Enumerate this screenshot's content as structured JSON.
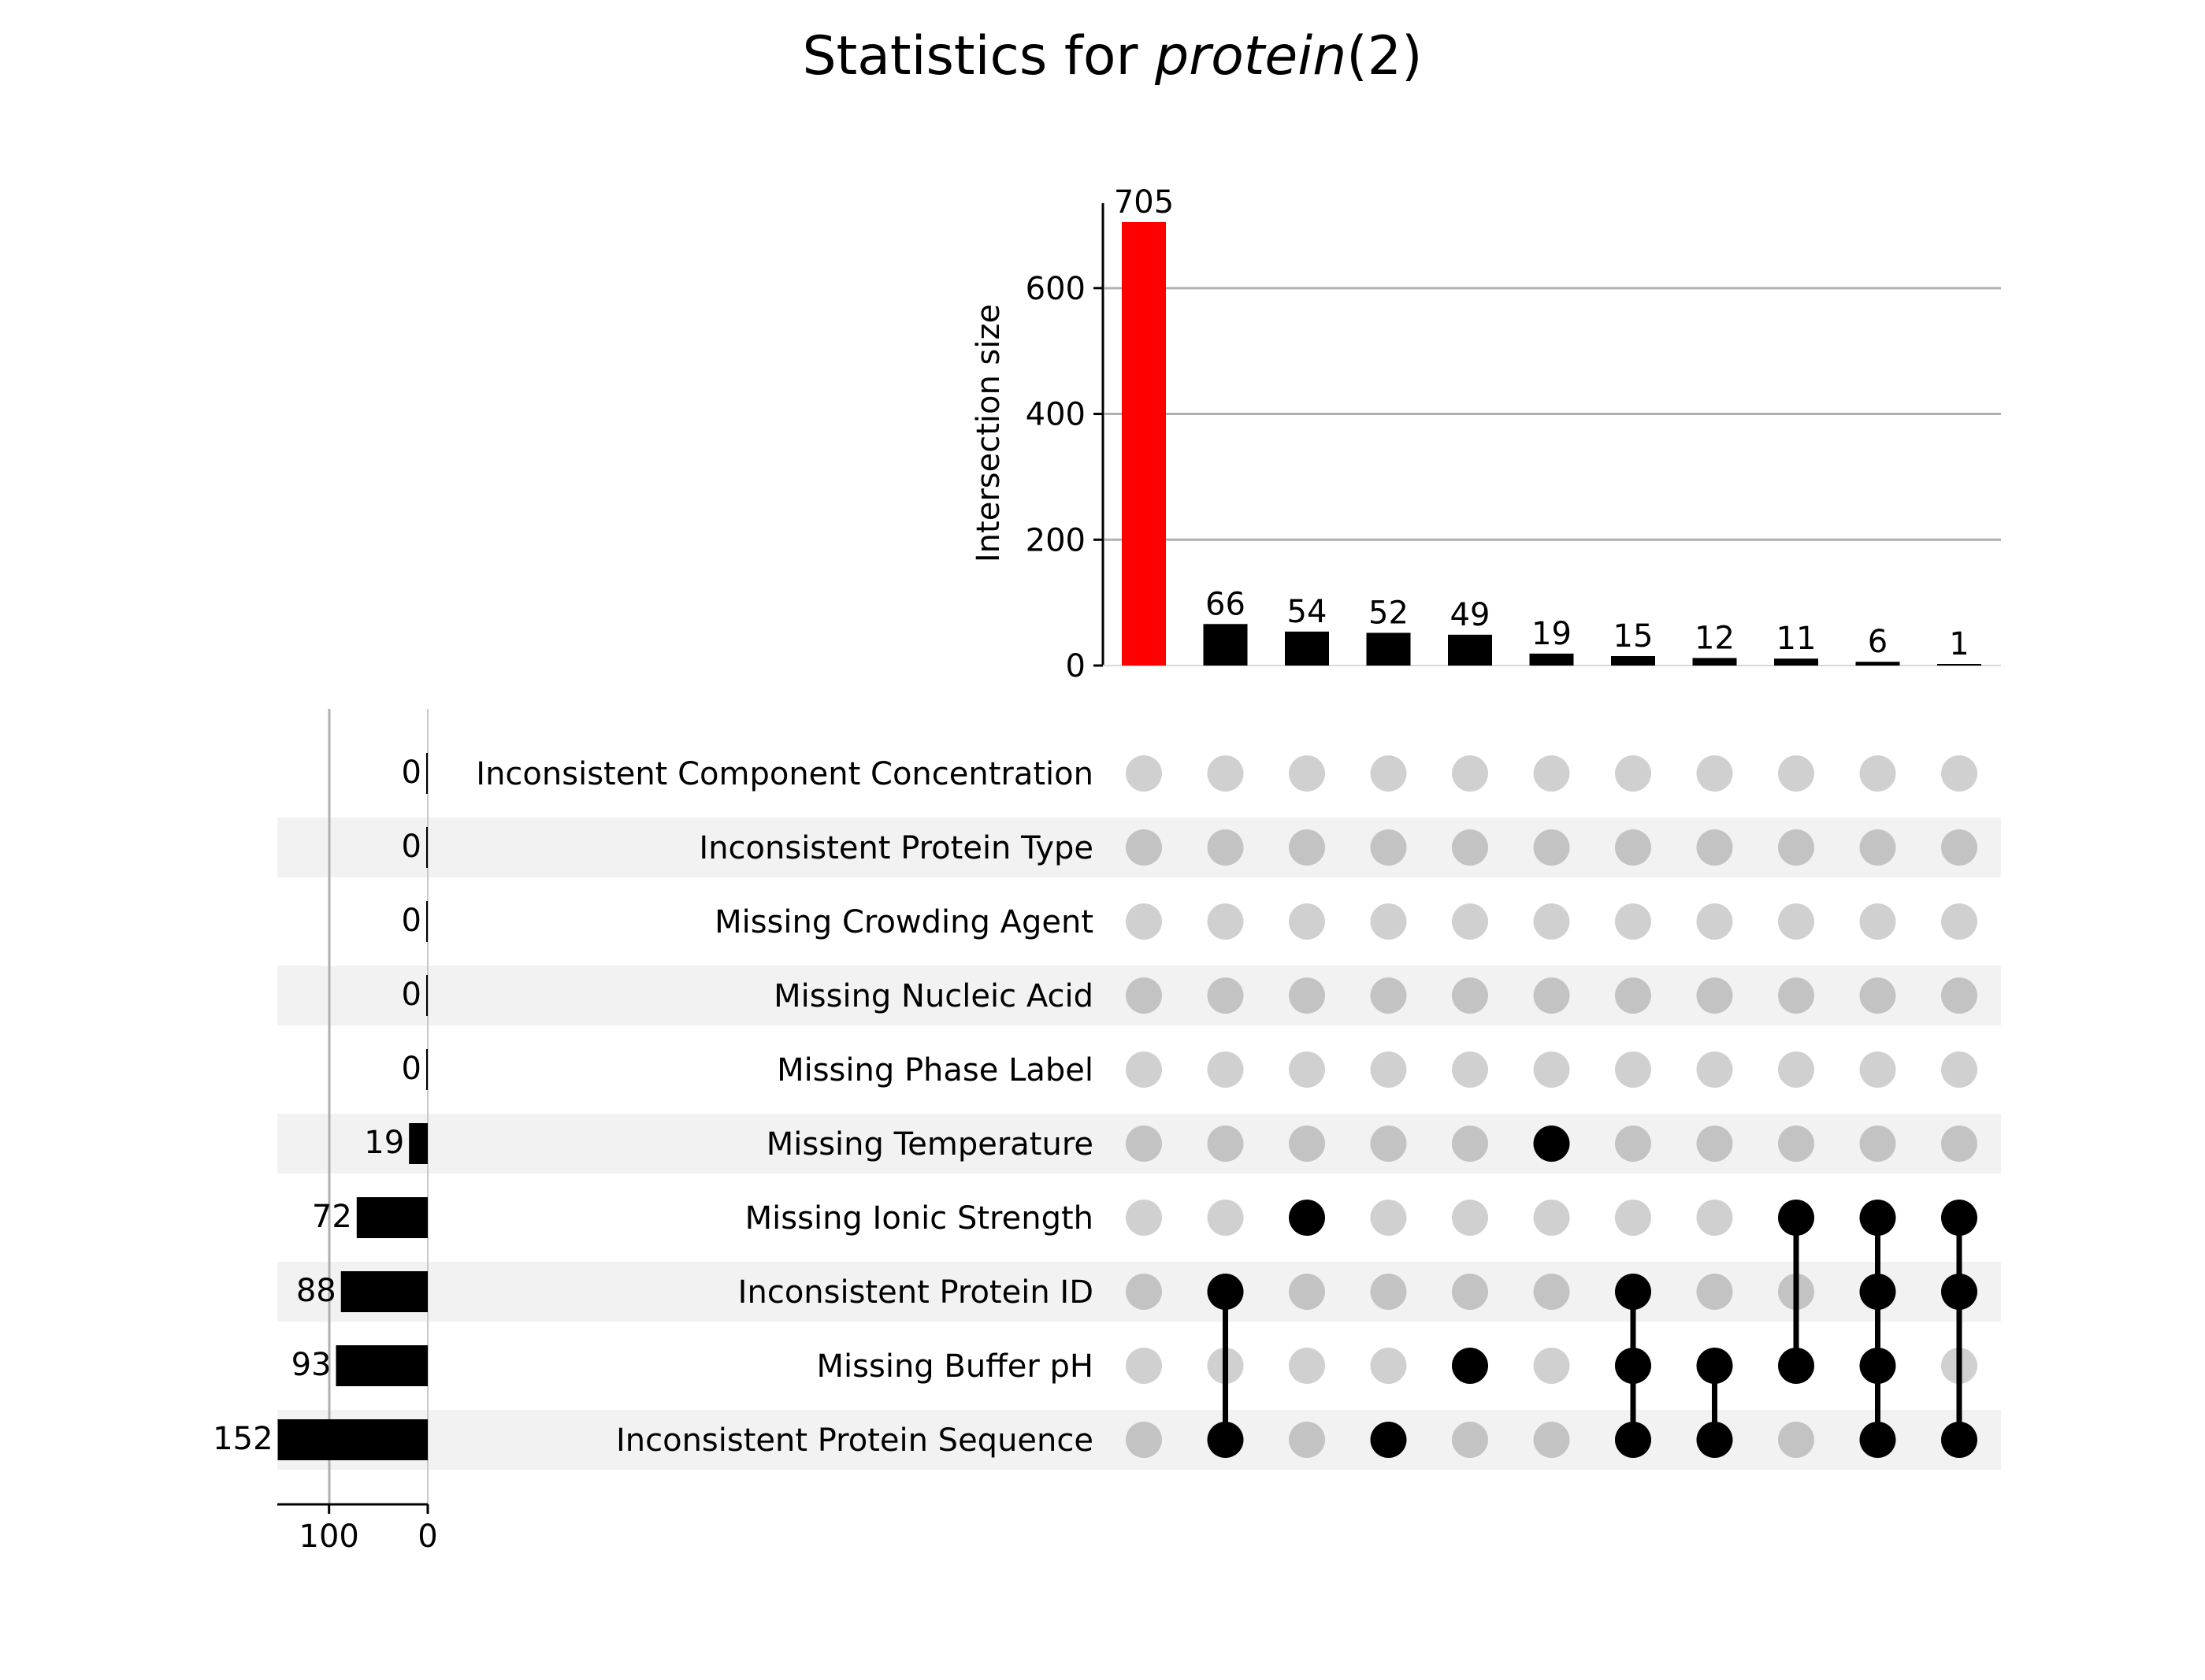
{
  "chart_data": {
    "type": "upset",
    "title": "Statistics for ",
    "title_italic": "protein",
    "title_suffix": "(2)",
    "ylabel": "Intersection size",
    "ylim": [
      0,
      735
    ],
    "yticks": [
      0,
      200,
      400,
      600
    ],
    "set_size_ticks": [
      100,
      0
    ],
    "set_size_xlim": [
      0,
      152
    ],
    "grid": true,
    "colors": {
      "highlight": "#ff0000",
      "bar": "#000000",
      "dot_active": "#000000",
      "dot_inactive": "#d0d0d0",
      "dot_inactive_shaded": "#c3c3c3",
      "row_shade": "#f2f2f2",
      "grid": "#b0b0b0"
    },
    "sets": [
      {
        "name": "Inconsistent Component Concentration",
        "size": 0
      },
      {
        "name": "Inconsistent Protein Type",
        "size": 0
      },
      {
        "name": "Missing Crowding Agent",
        "size": 0
      },
      {
        "name": "Missing Nucleic Acid",
        "size": 0
      },
      {
        "name": "Missing Phase Label",
        "size": 0
      },
      {
        "name": "Missing Temperature",
        "size": 19
      },
      {
        "name": "Missing Ionic Strength",
        "size": 72
      },
      {
        "name": "Inconsistent Protein ID",
        "size": 88
      },
      {
        "name": "Missing Buffer pH",
        "size": 93
      },
      {
        "name": "Inconsistent Protein Sequence",
        "size": 152
      }
    ],
    "intersections": [
      {
        "size": 705,
        "members": [],
        "highlight": true
      },
      {
        "size": 66,
        "members": [
          "Inconsistent Protein ID",
          "Inconsistent Protein Sequence"
        ]
      },
      {
        "size": 54,
        "members": [
          "Missing Ionic Strength"
        ]
      },
      {
        "size": 52,
        "members": [
          "Inconsistent Protein Sequence"
        ]
      },
      {
        "size": 49,
        "members": [
          "Missing Buffer pH"
        ]
      },
      {
        "size": 19,
        "members": [
          "Missing Temperature"
        ]
      },
      {
        "size": 15,
        "members": [
          "Inconsistent Protein ID",
          "Missing Buffer pH",
          "Inconsistent Protein Sequence"
        ]
      },
      {
        "size": 12,
        "members": [
          "Missing Buffer pH",
          "Inconsistent Protein Sequence"
        ]
      },
      {
        "size": 11,
        "members": [
          "Missing Ionic Strength",
          "Missing Buffer pH"
        ]
      },
      {
        "size": 6,
        "members": [
          "Missing Ionic Strength",
          "Inconsistent Protein ID",
          "Missing Buffer pH",
          "Inconsistent Protein Sequence"
        ]
      },
      {
        "size": 1,
        "members": [
          "Missing Ionic Strength",
          "Inconsistent Protein ID",
          "Inconsistent Protein Sequence"
        ]
      }
    ]
  }
}
